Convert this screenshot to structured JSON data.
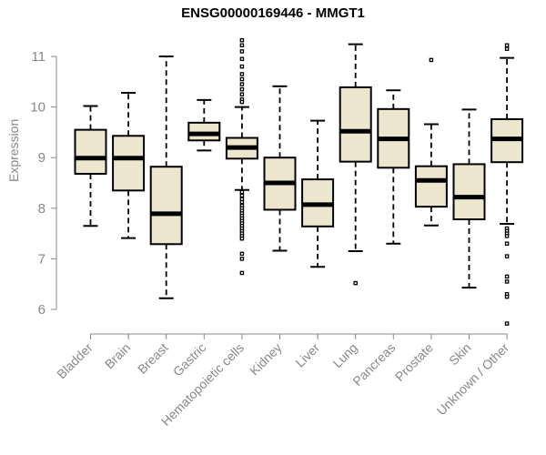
{
  "chart_data": {
    "type": "boxplot",
    "title": "ENSG00000169446 - MMGT1",
    "xlabel": "",
    "ylabel": "Expression",
    "ylim": [
      5.6,
      11.4
    ],
    "yticks": [
      6,
      7,
      8,
      9,
      10,
      11
    ],
    "colors": {
      "box_fill": "#ede6cf",
      "stroke": "#000000",
      "axis": "#888888"
    },
    "categories": [
      "Bladder",
      "Brain",
      "Breast",
      "Gastric",
      "Hematopoietic cells",
      "Kidney",
      "Liver",
      "Lung",
      "Pancreas",
      "Prostate",
      "Skin",
      "Unknown / Other"
    ],
    "boxes": [
      {
        "name": "Bladder",
        "min": 7.65,
        "q1": 8.68,
        "median": 8.99,
        "q3": 9.55,
        "max": 10.02,
        "outliers": []
      },
      {
        "name": "Brain",
        "min": 7.41,
        "q1": 8.35,
        "median": 8.99,
        "q3": 9.43,
        "max": 10.28,
        "outliers": []
      },
      {
        "name": "Breast",
        "min": 6.22,
        "q1": 7.29,
        "median": 7.89,
        "q3": 8.82,
        "max": 11.0,
        "outliers": []
      },
      {
        "name": "Gastric",
        "min": 9.14,
        "q1": 9.34,
        "median": 9.47,
        "q3": 9.69,
        "max": 10.14,
        "outliers": []
      },
      {
        "name": "Hematopoietic cells",
        "min": 8.36,
        "q1": 8.98,
        "median": 9.2,
        "q3": 9.39,
        "max": 10.0,
        "outliers": [
          11.32,
          11.22,
          11.1,
          10.95,
          10.8,
          10.65,
          10.55,
          10.45,
          10.35,
          10.25,
          10.15,
          10.1,
          8.32,
          8.25,
          8.18,
          8.12,
          8.05,
          8.0,
          7.95,
          7.9,
          7.85,
          7.8,
          7.75,
          7.7,
          7.65,
          7.6,
          7.55,
          7.5,
          7.45,
          7.4,
          7.1,
          7.0,
          6.72
        ]
      },
      {
        "name": "Kidney",
        "min": 7.16,
        "q1": 7.97,
        "median": 8.5,
        "q3": 9.0,
        "max": 10.41,
        "outliers": []
      },
      {
        "name": "Liver",
        "min": 6.84,
        "q1": 7.64,
        "median": 8.07,
        "q3": 8.57,
        "max": 9.73,
        "outliers": []
      },
      {
        "name": "Lung",
        "min": 7.15,
        "q1": 8.92,
        "median": 9.52,
        "q3": 10.39,
        "max": 11.24,
        "outliers": [
          6.52
        ]
      },
      {
        "name": "Pancreas",
        "min": 7.3,
        "q1": 8.8,
        "median": 9.37,
        "q3": 9.96,
        "max": 10.33,
        "outliers": []
      },
      {
        "name": "Prostate",
        "min": 7.66,
        "q1": 8.03,
        "median": 8.55,
        "q3": 8.83,
        "max": 9.66,
        "outliers": [
          10.93
        ]
      },
      {
        "name": "Skin",
        "min": 6.43,
        "q1": 7.78,
        "median": 8.22,
        "q3": 8.87,
        "max": 9.95,
        "outliers": []
      },
      {
        "name": "Unknown / Other",
        "min": 7.69,
        "q1": 8.91,
        "median": 9.37,
        "q3": 9.76,
        "max": 10.97,
        "outliers": [
          11.22,
          11.15,
          7.6,
          7.55,
          7.5,
          7.45,
          7.3,
          7.05,
          6.65,
          6.55,
          6.3,
          6.25,
          5.72
        ]
      }
    ]
  }
}
